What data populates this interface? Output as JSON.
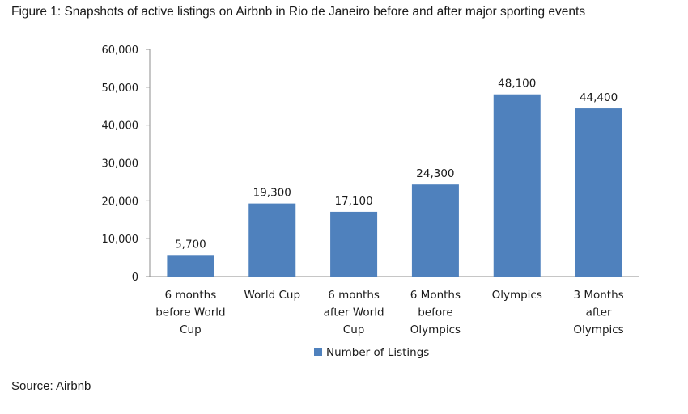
{
  "figure": {
    "title": "Figure 1: Snapshots of active listings on Airbnb in Rio de Janeiro before and after major sporting events",
    "source": "Source: Airbnb"
  },
  "chart_data": {
    "type": "bar",
    "categories": [
      "6 months before World Cup",
      "World Cup",
      "6 months after World Cup",
      "6 Months before Olympics",
      "Olympics",
      "3 Months after Olympics"
    ],
    "category_lines": [
      [
        "6 months",
        "before World",
        "Cup"
      ],
      [
        "World Cup"
      ],
      [
        "6 months",
        "after World",
        "Cup"
      ],
      [
        "6 Months",
        "before",
        "Olympics"
      ],
      [
        "Olympics"
      ],
      [
        "3 Months",
        "after",
        "Olympics"
      ]
    ],
    "series": [
      {
        "name": "Number of Listings",
        "values": [
          5700,
          19300,
          17100,
          24300,
          48100,
          44400
        ],
        "color": "#4f81bd"
      }
    ],
    "data_labels": [
      "5,700",
      "19,300",
      "17,100",
      "24,300",
      "48,100",
      "44,400"
    ],
    "ylim": [
      0,
      60000
    ],
    "yticks": [
      0,
      10000,
      20000,
      30000,
      40000,
      50000,
      60000
    ],
    "ytick_labels": [
      "0",
      "10,000",
      "20,000",
      "30,000",
      "40,000",
      "50,000",
      "60,000"
    ],
    "xlabel": "",
    "ylabel": "",
    "grid": false,
    "legend_position": "bottom"
  }
}
